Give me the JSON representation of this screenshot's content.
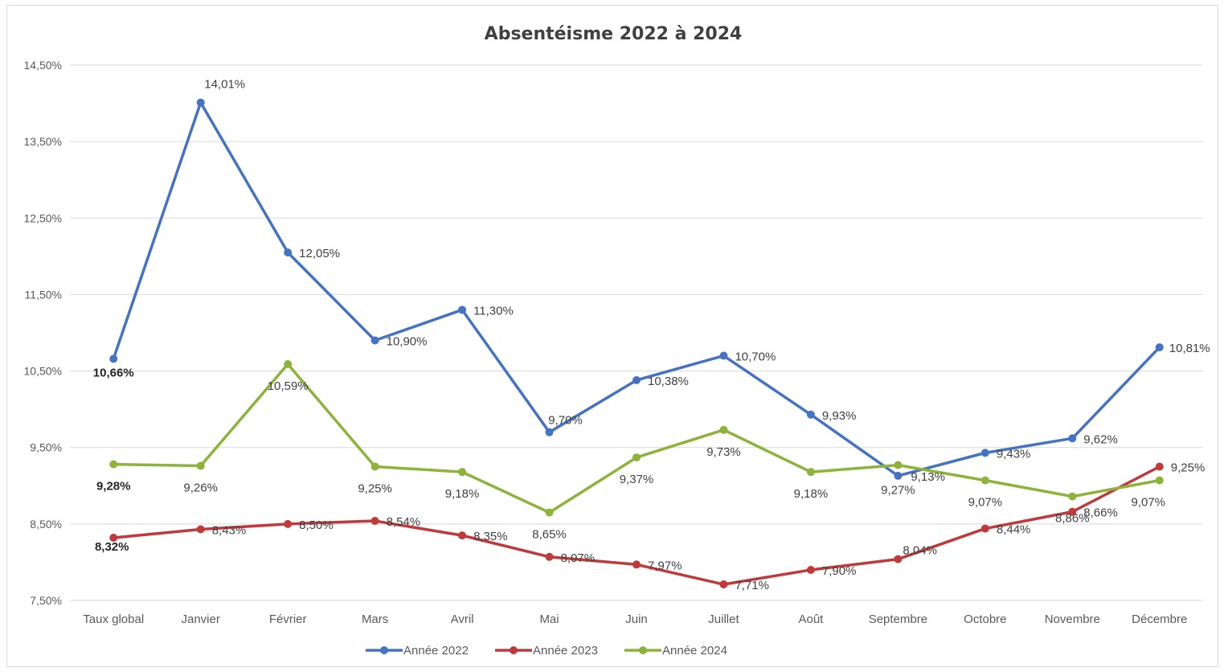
{
  "chart_data": {
    "type": "line",
    "title": "Absentéisme 2022 à 2024",
    "xlabel": "",
    "ylabel": "",
    "categories": [
      "Taux global",
      "Janvier",
      "Février",
      "Mars",
      "Avril",
      "Mai",
      "Juin",
      "Juillet",
      "Août",
      "Septembre",
      "Octobre",
      "Novembre",
      "Décembre"
    ],
    "ylim": [
      7.5,
      14.5
    ],
    "yticks": [
      7.5,
      8.5,
      9.5,
      10.5,
      11.5,
      12.5,
      13.5,
      14.5
    ],
    "ytick_labels": [
      "7,50%",
      "8,50%",
      "9,50%",
      "10,50%",
      "11,50%",
      "12,50%",
      "13,50%",
      "14,50%"
    ],
    "grid": true,
    "legend_position": "bottom",
    "series": [
      {
        "name": "Année 2022",
        "color": "#4472c4",
        "values": [
          10.66,
          14.01,
          12.05,
          10.9,
          11.3,
          9.7,
          10.38,
          10.7,
          9.93,
          9.13,
          9.43,
          9.62,
          10.81
        ],
        "labels": [
          "10,66%",
          "14,01%",
          "12,05%",
          "10,90%",
          "11,30%",
          "9,70%",
          "10,38%",
          "10,70%",
          "9,93%",
          "9,13%",
          "9,43%",
          "9,62%",
          "10,81%"
        ]
      },
      {
        "name": "Année 2023",
        "color": "#c0393b",
        "values": [
          8.32,
          8.43,
          8.5,
          8.54,
          8.35,
          8.07,
          7.97,
          7.71,
          7.9,
          8.04,
          8.44,
          8.66,
          9.25
        ],
        "labels": [
          "8,32%",
          "8,43%",
          "8,50%",
          "8,54%",
          "8,35%",
          "8,07%",
          "7,97%",
          "7,71%",
          "7,90%",
          "8,04%",
          "8,44%",
          "8,66%",
          "9,25%"
        ]
      },
      {
        "name": "Année 2024",
        "color": "#8db33a",
        "values": [
          9.28,
          9.26,
          10.59,
          9.25,
          9.18,
          8.65,
          9.37,
          9.73,
          9.18,
          9.27,
          9.07,
          8.86,
          9.07
        ],
        "labels": [
          "9,28%",
          "9,26%",
          "10,59%",
          "9,25%",
          "9,18%",
          "8,65%",
          "9,37%",
          "9,73%",
          "9,18%",
          "9,27%",
          "9,07%",
          "8,86%",
          "9,07%"
        ]
      }
    ]
  }
}
